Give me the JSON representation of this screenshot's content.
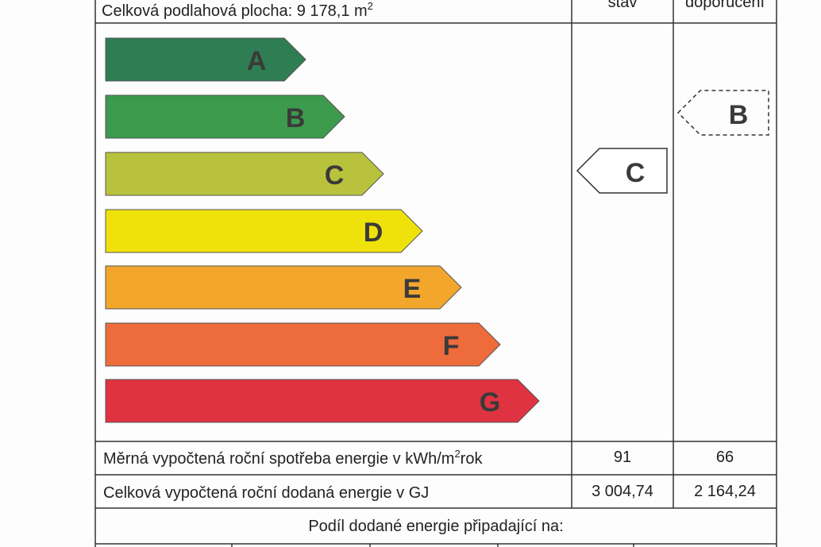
{
  "header": {
    "floor_area": {
      "text": "Celková podlahová plocha: 9 178,1 m",
      "sup": "2"
    },
    "current_column": "stav",
    "recommended_column": "doporučení"
  },
  "classes": [
    "A",
    "B",
    "C",
    "D",
    "E",
    "F",
    "G"
  ],
  "current_class": "C",
  "recommended_class": "B",
  "rows": [
    {
      "label": {
        "text": "Měrná vypočtená roční spotřeba energie v kWh/m",
        "sup": "2",
        "tail": "rok"
      },
      "current": "91",
      "recommended": "66"
    },
    {
      "label": {
        "text": "Celková vypočtená roční dodaná energie v GJ"
      },
      "current": "3 004,74",
      "recommended": "2 164,24"
    }
  ],
  "share_heading": "Podíl dodané energie připadající na:"
}
